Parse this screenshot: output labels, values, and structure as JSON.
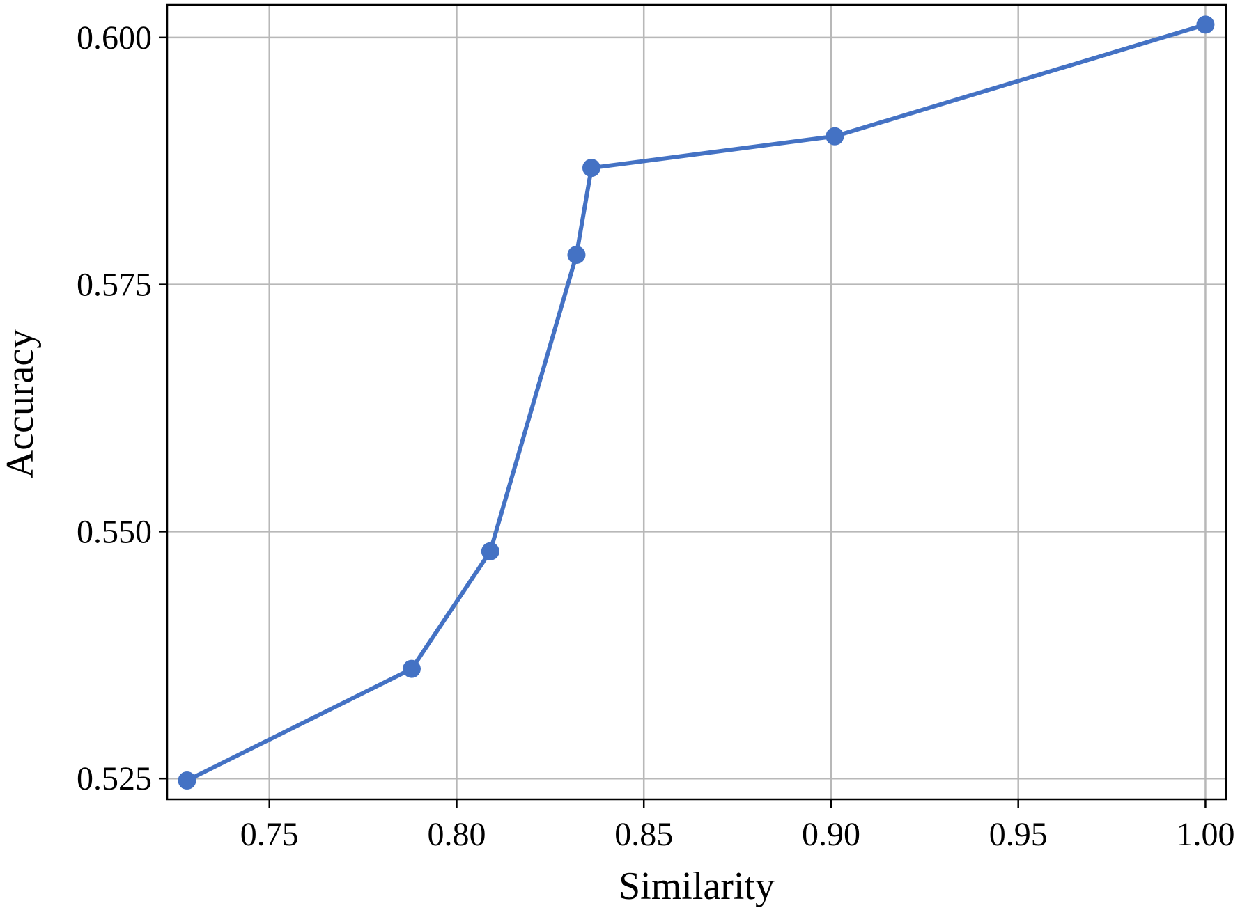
{
  "chart_data": {
    "type": "line",
    "title": "",
    "xlabel": "Similarity",
    "ylabel": "Accuracy",
    "xlim": [
      0.7227,
      1.0055
    ],
    "ylim": [
      0.5229,
      0.6033
    ],
    "xticks": [
      0.75,
      0.8,
      0.85,
      0.9,
      0.95,
      1.0
    ],
    "xtick_labels": [
      "0.75",
      "0.80",
      "0.85",
      "0.90",
      "0.95",
      "1.00"
    ],
    "yticks": [
      0.525,
      0.55,
      0.575,
      0.6
    ],
    "ytick_labels": [
      "0.525",
      "0.550",
      "0.575",
      "0.600"
    ],
    "grid": true,
    "legend": "none",
    "colors": {
      "series": "#4472c4",
      "grid": "#b8b8b8",
      "frame": "#000000"
    },
    "series": [
      {
        "marker": "circle",
        "x": [
          0.728,
          0.788,
          0.809,
          0.832,
          0.836,
          0.901,
          1.0
        ],
        "y": [
          0.5248,
          0.5361,
          0.548,
          0.578,
          0.5868,
          0.59,
          0.6013
        ]
      }
    ]
  }
}
